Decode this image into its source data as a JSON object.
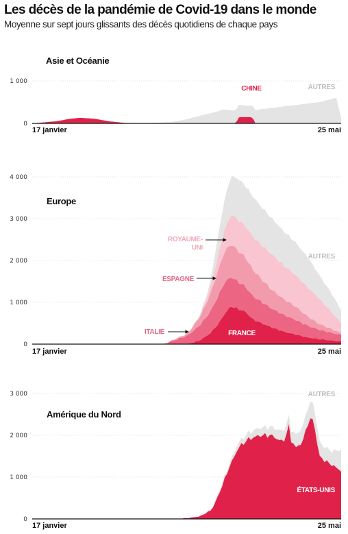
{
  "title": "Les décès de la pandémie de Covid-19 dans le monde",
  "subtitle": "Moyenne sur sept jours glissants des décès quotidiens de chaque pays",
  "colors": {
    "autres": "#e4e4e4",
    "chine": "#e0224a",
    "france": "#e0224a",
    "italie": "#ec6582",
    "espagne": "#f29bad",
    "royaume_uni": "#f8c5d0",
    "etats_unis": "#e0224a",
    "label_pink": "#e26c86",
    "label_light": "#f0a9b8",
    "label_grey": "#bdbdbd"
  },
  "chart_data": [
    {
      "type": "area",
      "title": "Asie et Océanie",
      "x_start": "17 janvier",
      "x_end": "25 mai",
      "x_range": [
        0,
        129
      ],
      "ylim": [
        0,
        1000
      ],
      "yticks": [
        0,
        1000
      ],
      "ytick_labels": [
        "0",
        "1 000"
      ],
      "stacked": true,
      "series": [
        {
          "name": "CHINE",
          "key": "chine",
          "x": [
            0,
            10,
            16,
            20,
            26,
            32,
            38,
            45,
            60,
            85,
            86,
            87,
            92,
            93,
            129
          ],
          "y": [
            0,
            50,
            110,
            130,
            110,
            50,
            15,
            0,
            0,
            0,
            140,
            150,
            150,
            0,
            0
          ]
        },
        {
          "name": "AUTRES",
          "key": "autres",
          "x": [
            0,
            30,
            50,
            58,
            64,
            70,
            76,
            80,
            85,
            90,
            95,
            100,
            105,
            110,
            115,
            120,
            124,
            127,
            129
          ],
          "y": [
            0,
            0,
            10,
            30,
            90,
            180,
            260,
            330,
            300,
            260,
            330,
            360,
            400,
            430,
            470,
            500,
            560,
            600,
            130
          ]
        }
      ]
    },
    {
      "type": "area",
      "title": "Europe",
      "x_start": "17 janvier",
      "x_end": "25 mai",
      "x_range": [
        0,
        129
      ],
      "ylim": [
        0,
        4000
      ],
      "yticks": [
        0,
        1000,
        2000,
        3000,
        4000
      ],
      "ytick_labels": [
        "0",
        "1 000",
        "2 000",
        "3 000",
        "4 000"
      ],
      "stacked": true,
      "series": [
        {
          "name": "FRANCE",
          "key": "france",
          "x": [
            0,
            45,
            55,
            65,
            70,
            74,
            78,
            80,
            83,
            86,
            89,
            92,
            95,
            100,
            105,
            110,
            115,
            120,
            125,
            129
          ],
          "y": [
            0,
            0,
            0,
            5,
            90,
            240,
            500,
            700,
            910,
            840,
            780,
            600,
            520,
            400,
            300,
            230,
            160,
            120,
            90,
            60
          ]
        },
        {
          "name": "ITALIE",
          "key": "italie",
          "x": [
            0,
            45,
            55,
            65,
            70,
            74,
            78,
            80,
            83,
            86,
            89,
            92,
            95,
            100,
            105,
            110,
            115,
            120,
            125,
            129
          ],
          "y": [
            0,
            0,
            0,
            200,
            360,
            500,
            680,
            750,
            700,
            650,
            600,
            550,
            520,
            450,
            400,
            350,
            280,
            220,
            180,
            160
          ]
        },
        {
          "name": "ESPAGNE",
          "key": "espagne",
          "x": [
            0,
            45,
            55,
            65,
            70,
            74,
            78,
            80,
            83,
            86,
            89,
            92,
            95,
            100,
            105,
            110,
            115,
            120,
            125,
            129
          ],
          "y": [
            0,
            0,
            0,
            50,
            200,
            400,
            640,
            730,
            790,
            740,
            700,
            640,
            560,
            450,
            380,
            320,
            220,
            140,
            90,
            40
          ]
        },
        {
          "name": "ROYAUME-UNI",
          "key": "royaume_uni",
          "x": [
            0,
            45,
            55,
            65,
            70,
            74,
            78,
            80,
            83,
            86,
            89,
            92,
            95,
            100,
            105,
            110,
            115,
            120,
            125,
            129
          ],
          "y": [
            0,
            0,
            0,
            0,
            20,
            130,
            380,
            500,
            700,
            740,
            750,
            790,
            810,
            850,
            800,
            750,
            700,
            600,
            400,
            250
          ]
        },
        {
          "name": "AUTRES",
          "key": "autres",
          "x": [
            0,
            45,
            55,
            65,
            70,
            74,
            78,
            80,
            83,
            86,
            89,
            92,
            95,
            100,
            105,
            110,
            115,
            120,
            125,
            129
          ],
          "y": [
            0,
            0,
            0,
            10,
            20,
            120,
            500,
            700,
            930,
            980,
            960,
            960,
            920,
            860,
            820,
            780,
            720,
            560,
            450,
            300
          ]
        }
      ]
    },
    {
      "type": "area",
      "title": "Amérique du Nord",
      "x_start": "17 janvier",
      "x_end": "25 mai",
      "x_range": [
        0,
        129
      ],
      "ylim": [
        0,
        3000
      ],
      "yticks": [
        0,
        1000,
        2000,
        3000
      ],
      "ytick_labels": [
        "0",
        "1 000",
        "2 000",
        "3 000"
      ],
      "stacked": true,
      "series": [
        {
          "name": "ÉTATS-UNIS",
          "key": "etats_unis",
          "x": [
            0,
            60,
            65,
            70,
            75,
            78,
            82,
            86,
            90,
            95,
            100,
            104,
            106,
            107,
            108,
            110,
            113,
            115,
            117,
            118,
            119,
            120,
            122,
            125,
            129
          ],
          "y": [
            0,
            0,
            20,
            60,
            220,
            600,
            1200,
            1700,
            1900,
            2000,
            2000,
            1850,
            1950,
            2300,
            1900,
            1700,
            1850,
            2300,
            2400,
            2200,
            1800,
            1500,
            1400,
            1300,
            1150
          ]
        },
        {
          "name": "AUTRES",
          "key": "autres",
          "x": [
            0,
            60,
            65,
            70,
            75,
            78,
            82,
            86,
            90,
            95,
            100,
            104,
            106,
            107,
            108,
            110,
            113,
            115,
            117,
            118,
            119,
            120,
            122,
            125,
            129
          ],
          "y": [
            0,
            0,
            0,
            5,
            20,
            50,
            80,
            120,
            150,
            180,
            200,
            250,
            250,
            220,
            250,
            300,
            350,
            380,
            400,
            400,
            380,
            350,
            320,
            320,
            500
          ]
        }
      ]
    }
  ],
  "labels": {
    "asie_chine": "CHINE",
    "asie_autres": "AUTRES",
    "europe_royaume_uni": "ROYAUME-",
    "europe_royaume_uni_2": "UNI",
    "europe_espagne": "ESPAGNE",
    "europe_italie": "ITALIE",
    "europe_france": "FRANCE",
    "europe_autres": "AUTRES",
    "na_etats_unis": "ÉTATS-UNIS",
    "na_autres": "AUTRES"
  }
}
